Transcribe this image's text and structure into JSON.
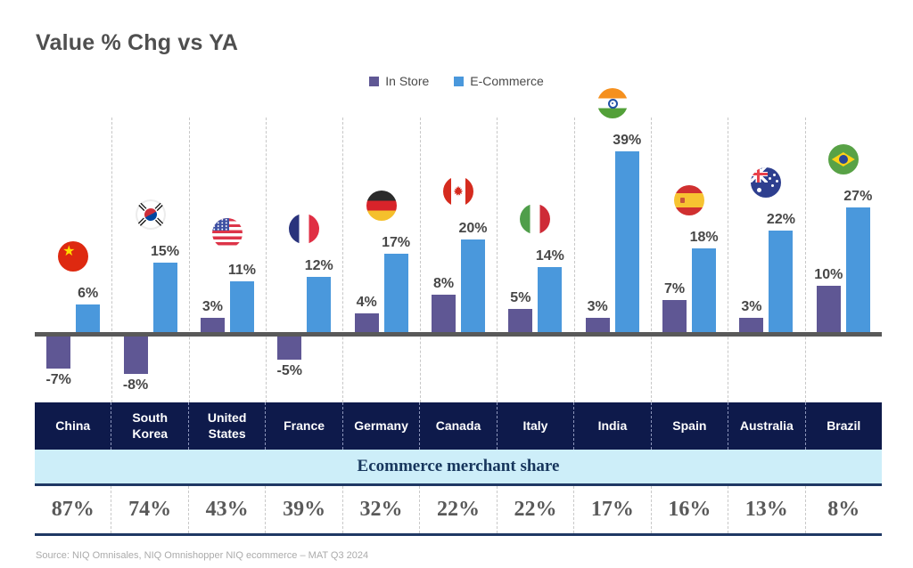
{
  "title": "Value % Chg vs YA",
  "legend": {
    "items": [
      {
        "label": "In Store",
        "color": "#5f5794"
      },
      {
        "label": "E-Commerce",
        "color": "#4a98dc"
      }
    ]
  },
  "chart_data": {
    "type": "bar",
    "categories": [
      "China",
      "South Korea",
      "United States",
      "France",
      "Germany",
      "Canada",
      "Italy",
      "India",
      "Spain",
      "Australia",
      "Brazil"
    ],
    "series": [
      {
        "name": "In Store",
        "color": "#5f5794",
        "values": [
          -7,
          -8,
          3,
          -5,
          4,
          8,
          5,
          3,
          7,
          3,
          10
        ]
      },
      {
        "name": "E-Commerce",
        "color": "#4a98dc",
        "values": [
          6,
          15,
          11,
          12,
          17,
          20,
          14,
          39,
          18,
          22,
          27
        ]
      }
    ],
    "value_suffix": "%",
    "title": "Value % Chg vs YA",
    "xlabel": "",
    "ylabel": "",
    "ylim": [
      -10,
      42
    ],
    "grid": "vertical-dashed",
    "legend_position": "top-center",
    "flag_icons": [
      "china-flag-icon",
      "south-korea-flag-icon",
      "united-states-flag-icon",
      "france-flag-icon",
      "germany-flag-icon",
      "canada-flag-icon",
      "italy-flag-icon",
      "india-flag-icon",
      "spain-flag-icon",
      "australia-flag-icon",
      "brazil-flag-icon"
    ]
  },
  "table": {
    "countries": [
      "China",
      "South Korea",
      "United States",
      "France",
      "Germany",
      "Canada",
      "Italy",
      "India",
      "Spain",
      "Australia",
      "Brazil"
    ],
    "band_label": "Ecommerce merchant share",
    "merchant_share": [
      "87%",
      "74%",
      "43%",
      "39%",
      "32%",
      "22%",
      "22%",
      "17%",
      "16%",
      "13%",
      "8%"
    ]
  },
  "source": "Source: NIQ Omnisales, NIQ Omnishopper NIQ ecommerce – MAT Q3 2024",
  "colors": {
    "in_store": "#5f5794",
    "ecommerce": "#4a98dc",
    "header_bg": "#0e1a4b",
    "band_bg": "#cdeef9",
    "band_text": "#17365d",
    "axis": "#595959"
  }
}
